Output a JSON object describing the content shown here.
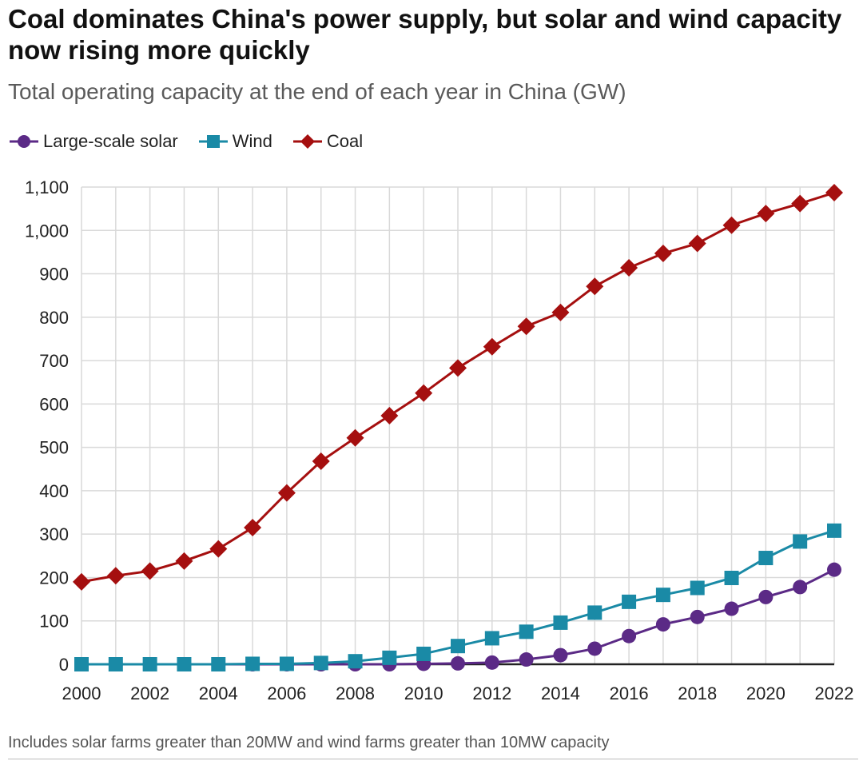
{
  "chart_data": {
    "type": "line",
    "title": "Coal dominates China's power supply, but solar and wind capacity now rising more quickly",
    "subtitle": "Total operating capacity at the end of each year in China (GW)",
    "xlabel": "",
    "ylabel": "GW",
    "ylim": [
      0,
      1100
    ],
    "y_ticks": [
      0,
      100,
      200,
      300,
      400,
      500,
      600,
      700,
      800,
      900,
      1000,
      1100
    ],
    "y_tick_labels": [
      "0",
      "100",
      "200",
      "300",
      "400",
      "500",
      "600",
      "700",
      "800",
      "900",
      "1,000",
      "1,100"
    ],
    "x": [
      2000,
      2001,
      2002,
      2003,
      2004,
      2005,
      2006,
      2007,
      2008,
      2009,
      2010,
      2011,
      2012,
      2013,
      2014,
      2015,
      2016,
      2017,
      2018,
      2019,
      2020,
      2021,
      2022
    ],
    "x_tick_labels": [
      "2000",
      "2002",
      "2004",
      "2006",
      "2008",
      "2010",
      "2012",
      "2014",
      "2016",
      "2018",
      "2020",
      "2022"
    ],
    "x_tick_values": [
      2000,
      2002,
      2004,
      2006,
      2008,
      2010,
      2012,
      2014,
      2016,
      2018,
      2020,
      2022
    ],
    "grid": true,
    "legend_position": "top-left",
    "series": [
      {
        "name": "Large-scale solar",
        "marker": "circle",
        "color": "#5b2a86",
        "values": [
          0,
          0,
          0,
          0,
          0,
          0,
          0,
          0,
          0,
          0,
          1,
          2,
          4,
          11,
          21,
          36,
          65,
          92,
          109,
          128,
          155,
          178,
          218
        ]
      },
      {
        "name": "Wind",
        "marker": "square",
        "color": "#1a8aa6",
        "values": [
          0,
          0,
          0,
          0,
          0,
          1,
          1,
          3,
          7,
          15,
          24,
          42,
          60,
          75,
          96,
          119,
          144,
          160,
          176,
          199,
          245,
          283,
          308
        ]
      },
      {
        "name": "Coal",
        "marker": "diamond",
        "color": "#a50f0f",
        "values": [
          190,
          204,
          215,
          238,
          266,
          315,
          395,
          468,
          522,
          573,
          625,
          683,
          732,
          779,
          811,
          871,
          914,
          947,
          970,
          1012,
          1039,
          1062,
          1087
        ]
      }
    ]
  },
  "footnote": "Includes solar farms greater than 20MW and wind farms greater than 10MW capacity"
}
